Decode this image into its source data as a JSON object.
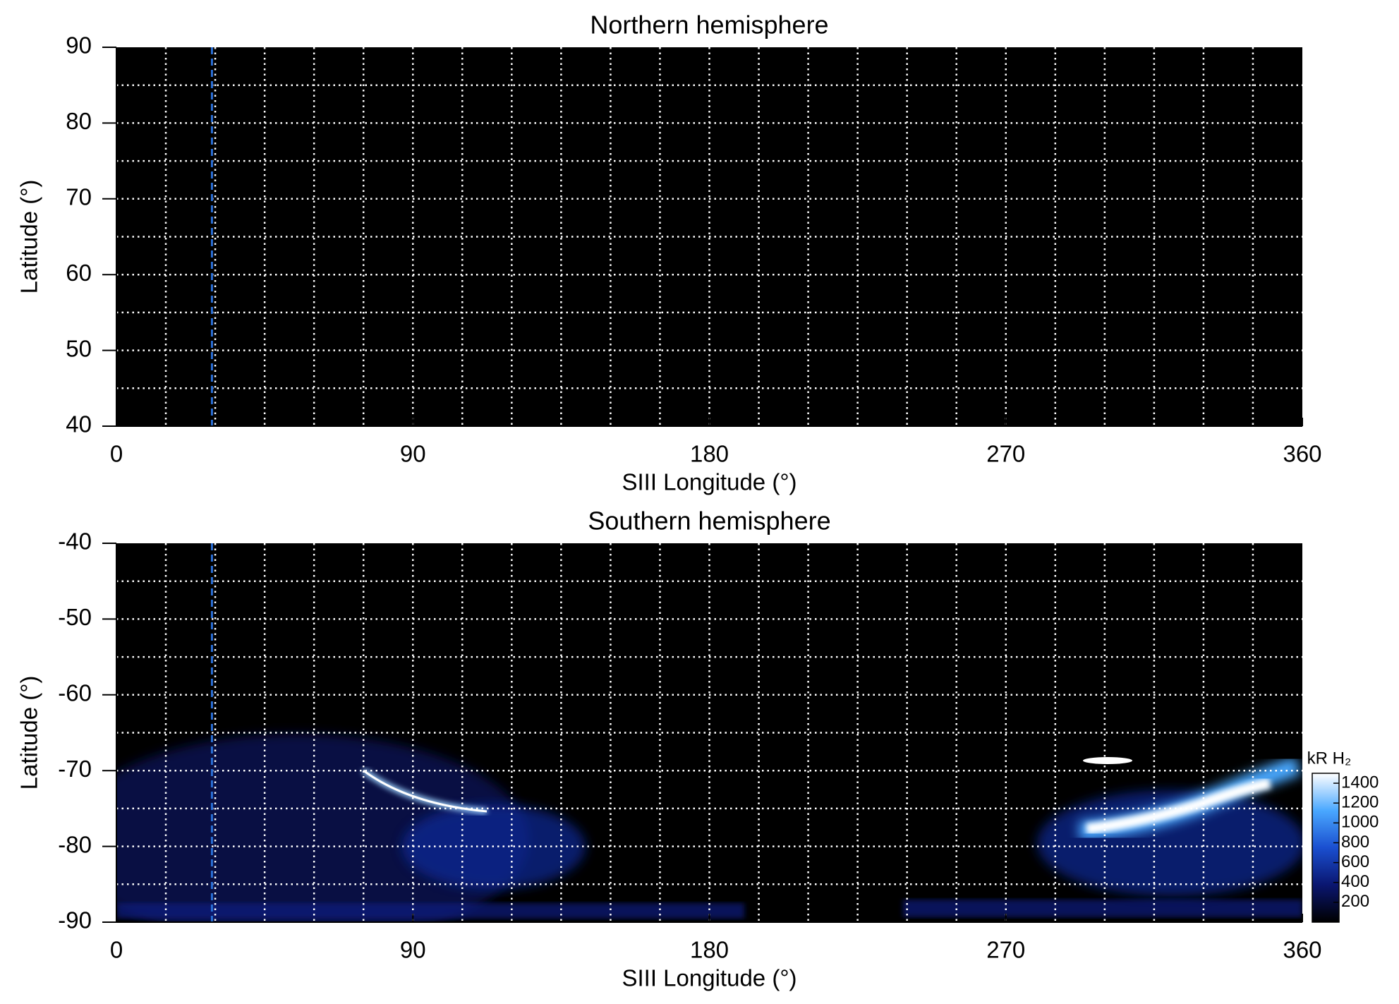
{
  "chart_data": [
    {
      "type": "heatmap",
      "title": "Northern hemisphere",
      "xlabel": "SIII Longitude (°)",
      "ylabel": "Latitude (°)",
      "xlim": [
        0,
        360
      ],
      "ylim": [
        40,
        90
      ],
      "xticks": [
        0,
        90,
        180,
        270,
        360
      ],
      "yticks": [
        40,
        50,
        60,
        70,
        80,
        90
      ],
      "xgrid": [
        15,
        30,
        45,
        60,
        75,
        90,
        105,
        120,
        135,
        150,
        165,
        180,
        195,
        210,
        225,
        240,
        255,
        270,
        285,
        300,
        315,
        330,
        345
      ],
      "ygrid": [
        45,
        50,
        55,
        60,
        65,
        70,
        75,
        80,
        85
      ],
      "grid_color": "#ffffff",
      "background": "#000000",
      "vline": 29,
      "vline_color": "#2a6fd6"
    },
    {
      "type": "heatmap",
      "title": "Southern hemisphere",
      "xlabel": "SIII Longitude (°)",
      "ylabel": "Latitude (°)",
      "xlim": [
        0,
        360
      ],
      "ylim": [
        -90,
        -40
      ],
      "xticks": [
        0,
        90,
        180,
        270,
        360
      ],
      "yticks": [
        -90,
        -80,
        -70,
        -60,
        -50,
        -40
      ],
      "xgrid": [
        15,
        30,
        45,
        60,
        75,
        90,
        105,
        120,
        135,
        150,
        165,
        180,
        195,
        210,
        225,
        240,
        255,
        270,
        285,
        300,
        315,
        330,
        345
      ],
      "ygrid": [
        -85,
        -80,
        -75,
        -70,
        -65,
        -60,
        -55,
        -50,
        -45
      ],
      "grid_color": "#ffffff",
      "background": "#000000",
      "vline": 29,
      "vline_color": "#2a6fd6",
      "colorbar": {
        "label": "kR H₂",
        "lim": [
          0,
          1500
        ],
        "ticks": [
          200,
          400,
          600,
          800,
          1000,
          1200,
          1400
        ],
        "colors": [
          "#000000",
          "#0a1670",
          "#1a4fd0",
          "#4aa8ff",
          "#ffffff"
        ]
      }
    }
  ]
}
